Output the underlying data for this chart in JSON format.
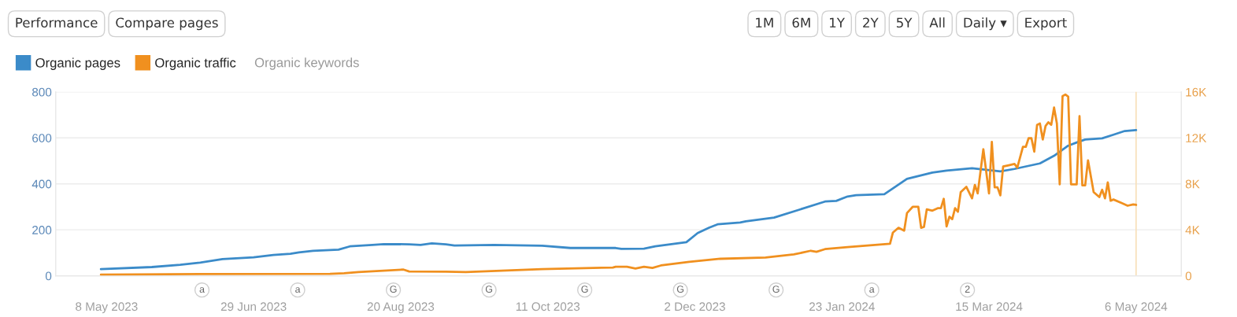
{
  "chart_data": {
    "type": "line",
    "xlim": [
      "2023-04-20",
      "2024-05-22"
    ],
    "xticks": [
      {
        "value": "2023-05-08",
        "label": "8 May 2023"
      },
      {
        "value": "2023-06-29",
        "label": "29 Jun 2023"
      },
      {
        "value": "2023-08-20",
        "label": "20 Aug 2023"
      },
      {
        "value": "2023-10-11",
        "label": "11 Oct 2023"
      },
      {
        "value": "2023-12-02",
        "label": "2 Dec 2023"
      },
      {
        "value": "2024-01-23",
        "label": "23 Jan 2024"
      },
      {
        "value": "2024-03-15",
        "label": "15 Mar 2024"
      },
      {
        "value": "2024-05-06",
        "label": "6 May 2024"
      }
    ],
    "ylim": [
      0,
      800
    ],
    "yticks": [
      0,
      200,
      400,
      600,
      800
    ],
    "y2lim": [
      0,
      16000
    ],
    "y2ticks": [
      {
        "value": 0,
        "label": "0"
      },
      {
        "value": 4000,
        "label": "4K"
      },
      {
        "value": 8000,
        "label": "8K"
      },
      {
        "value": 12000,
        "label": "12K"
      },
      {
        "value": 16000,
        "label": "16K"
      }
    ],
    "grid": "y",
    "legend": "top left",
    "series": [
      {
        "name": "Organic pages",
        "color": "#3b8bc9",
        "axis": "y",
        "x": [
          "2023-05-06",
          "2023-05-24",
          "2023-06-03",
          "2023-06-10",
          "2023-06-18",
          "2023-06-29",
          "2023-07-06",
          "2023-07-12",
          "2023-07-15",
          "2023-07-20",
          "2023-07-29",
          "2023-08-02",
          "2023-08-10",
          "2023-08-14",
          "2023-08-23",
          "2023-08-27",
          "2023-08-31",
          "2023-09-05",
          "2023-09-08",
          "2023-09-22",
          "2023-10-09",
          "2023-10-19",
          "2023-11-04",
          "2023-11-06",
          "2023-11-14",
          "2023-11-18",
          "2023-11-29",
          "2023-12-03",
          "2023-12-07",
          "2023-12-10",
          "2023-12-18",
          "2023-12-20",
          "2023-12-30",
          "2024-01-08",
          "2024-01-17",
          "2024-01-21",
          "2024-01-25",
          "2024-01-28",
          "2024-02-07",
          "2024-02-15",
          "2024-02-24",
          "2024-02-29",
          "2024-03-09",
          "2024-03-19",
          "2024-03-24",
          "2024-04-02",
          "2024-04-07",
          "2024-04-12",
          "2024-04-15",
          "2024-04-18",
          "2024-04-24",
          "2024-04-28",
          "2024-05-02",
          "2024-05-06"
        ],
        "values": [
          29,
          38,
          48,
          57,
          73,
          80,
          91,
          96,
          102,
          109,
          114,
          128,
          134,
          138,
          137,
          134,
          141,
          137,
          132,
          134,
          131,
          121,
          121,
          117,
          118,
          128,
          146,
          186,
          209,
          224,
          232,
          237,
          253,
          288,
          323,
          326,
          345,
          351,
          355,
          422,
          449,
          458,
          468,
          454,
          465,
          489,
          522,
          566,
          580,
          593,
          598,
          614,
          630,
          634
        ]
      },
      {
        "name": "Organic traffic",
        "color": "#f0901f",
        "axis": "y2",
        "x": [
          "2023-05-06",
          "2023-06-10",
          "2023-07-26",
          "2023-07-31",
          "2023-08-05",
          "2023-08-21",
          "2023-08-23",
          "2023-09-05",
          "2023-09-12",
          "2023-10-09",
          "2023-11-03",
          "2023-11-04",
          "2023-11-08",
          "2023-11-11",
          "2023-11-14",
          "2023-11-17",
          "2023-11-20",
          "2023-11-30",
          "2023-12-11",
          "2023-12-27",
          "2024-01-06",
          "2024-01-12",
          "2024-01-14",
          "2024-01-17",
          "2024-01-25",
          "2024-02-09",
          "2024-02-10",
          "2024-02-12",
          "2024-02-14",
          "2024-02-15",
          "2024-02-17",
          "2024-02-19",
          "2024-02-20",
          "2024-02-21",
          "2024-02-22",
          "2024-02-24",
          "2024-02-26",
          "2024-02-27",
          "2024-02-28",
          "2024-02-29",
          "2024-03-01",
          "2024-03-02",
          "2024-03-03",
          "2024-03-04",
          "2024-03-05",
          "2024-03-07",
          "2024-03-09",
          "2024-03-10",
          "2024-03-11",
          "2024-03-13",
          "2024-03-15",
          "2024-03-16",
          "2024-03-17",
          "2024-03-18",
          "2024-03-19",
          "2024-03-20",
          "2024-03-22",
          "2024-03-24",
          "2024-03-25",
          "2024-03-27",
          "2024-03-28",
          "2024-03-29",
          "2024-03-30",
          "2024-03-31",
          "2024-04-01",
          "2024-04-02",
          "2024-04-03",
          "2024-04-04",
          "2024-04-05",
          "2024-04-06",
          "2024-04-07",
          "2024-04-08",
          "2024-04-09",
          "2024-04-10",
          "2024-04-11",
          "2024-04-12",
          "2024-04-13",
          "2024-04-15",
          "2024-04-16",
          "2024-04-17",
          "2024-04-18",
          "2024-04-19",
          "2024-04-21",
          "2024-04-23",
          "2024-04-24",
          "2024-04-25",
          "2024-04-26",
          "2024-04-27",
          "2024-04-28",
          "2024-05-01",
          "2024-05-03",
          "2024-05-05",
          "2024-05-06"
        ],
        "values": [
          100,
          150,
          170,
          220,
          330,
          540,
          380,
          360,
          330,
          580,
          720,
          790,
          790,
          630,
          790,
          680,
          900,
          1220,
          1480,
          1590,
          1860,
          2180,
          2090,
          2320,
          2500,
          2790,
          3750,
          4180,
          3930,
          5460,
          6000,
          6000,
          4180,
          4250,
          5780,
          5670,
          5890,
          5890,
          6700,
          4290,
          5140,
          4930,
          5890,
          5570,
          7280,
          7740,
          6740,
          7910,
          7170,
          11010,
          7170,
          11650,
          7700,
          7700,
          7000,
          9510,
          9620,
          9730,
          9410,
          11220,
          11220,
          11970,
          11970,
          10800,
          13140,
          13250,
          11860,
          13040,
          13360,
          13140,
          14640,
          13250,
          7960,
          15640,
          15770,
          15590,
          7960,
          7960,
          13890,
          7870,
          7870,
          10050,
          7280,
          6850,
          7490,
          6740,
          8130,
          6530,
          6640,
          6320,
          6100,
          6210,
          6170
        ]
      }
    ],
    "ref_lines": [
      {
        "axis": "x",
        "value": "2024-05-06",
        "color": "#f8dfb8"
      }
    ],
    "annotations": [
      "Performance",
      "Compare pages",
      "1M",
      "6M",
      "1Y",
      "2Y",
      "5Y",
      "All",
      "Daily ▾",
      "Export",
      "Organic keywords",
      "a",
      "a",
      "G",
      "G",
      "G",
      "G",
      "G",
      "a",
      "2"
    ]
  }
}
